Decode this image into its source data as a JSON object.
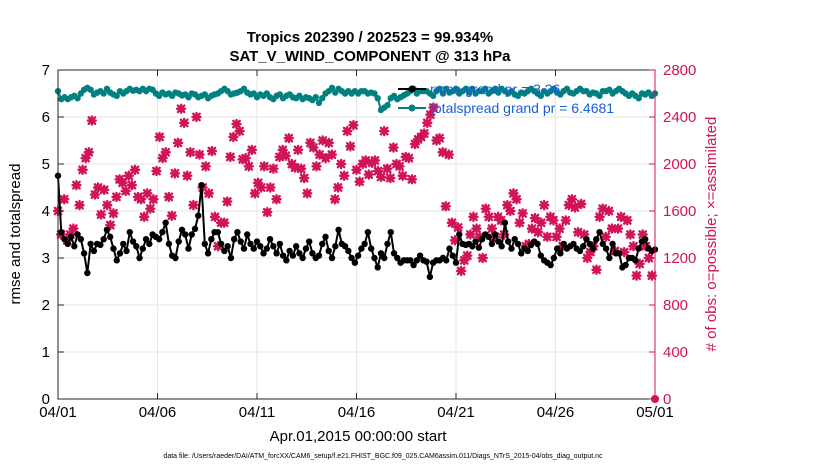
{
  "chart_data": {
    "type": "line",
    "title": "Tropics 202390 / 202523 = 99.934%",
    "subtitle": "SAT_V_WIND_COMPONENT @ 313 hPa",
    "xlabel": "Apr.01,2015 00:00:00 start",
    "ylabel": "rmse and totalspread",
    "ylabel_right": "# of obs: o=possible; ×=assimilated",
    "footer": "data file: /Users/raeder/DAI/ATM_forcXX/CAM6_setup/f.e21.FHIST_BGC.f09_025.CAM6assim.011/Diags_NTrS_2015-04/obs_diag_output.nc",
    "xlim": [
      0,
      30
    ],
    "ylim": [
      0,
      7
    ],
    "ylim_right": [
      0,
      2800
    ],
    "x_ticks": [
      0,
      5,
      10,
      15,
      20,
      25,
      30
    ],
    "x_tick_labels": [
      "04/01",
      "04/06",
      "04/11",
      "04/16",
      "04/21",
      "04/26",
      "05/01"
    ],
    "y_ticks": [
      0,
      1,
      2,
      3,
      4,
      5,
      6,
      7
    ],
    "y_tick_labels": [
      "0",
      "1",
      "2",
      "3",
      "4",
      "5",
      "6",
      "7"
    ],
    "y_right_ticks": [
      0,
      400,
      800,
      1200,
      1600,
      2000,
      2400,
      2800
    ],
    "y_right_tick_labels": [
      "0",
      "400",
      "800",
      "1200",
      "1600",
      "2000",
      "2400",
      "2800"
    ],
    "grid": true,
    "legend_position": "top-right",
    "colors": {
      "rmse": "#000000",
      "spread": "#008080",
      "obs": "#d1135a",
      "legend_text": "#1a5fd8"
    },
    "series": [
      {
        "name": "rmse grand pr = 3.26",
        "axis": "left",
        "style": "line-dot",
        "values": [
          4.75,
          3.55,
          3.4,
          3.3,
          3.45,
          3.25,
          3.5,
          3.4,
          3.1,
          2.68,
          3.3,
          3.15,
          3.3,
          3.28,
          3.4,
          3.6,
          3.45,
          3.2,
          2.95,
          3.1,
          3.3,
          3.15,
          3.55,
          3.35,
          3.25,
          3.0,
          3.2,
          3.4,
          3.3,
          3.5,
          3.45,
          3.4,
          3.55,
          3.75,
          3.3,
          3.05,
          3.0,
          3.35,
          3.6,
          3.5,
          3.2,
          3.5,
          3.62,
          3.9,
          4.55,
          3.3,
          3.1,
          3.4,
          3.55,
          3.55,
          3.3,
          3.15,
          3.25,
          3.0,
          3.4,
          3.55,
          3.35,
          3.2,
          3.5,
          3.3,
          3.2,
          3.35,
          3.25,
          3.1,
          3.2,
          3.4,
          3.25,
          3.1,
          3.3,
          3.05,
          2.95,
          3.15,
          3.05,
          3.25,
          3.1,
          3.0,
          3.2,
          3.35,
          3.1,
          3.0,
          3.05,
          3.3,
          3.45,
          3.15,
          3.0,
          3.25,
          3.6,
          3.3,
          3.25,
          3.15,
          3.0,
          2.9,
          3.05,
          3.2,
          3.3,
          3.55,
          3.2,
          3.0,
          2.8,
          3.1,
          3.0,
          3.3,
          3.55,
          3.1,
          3.0,
          2.9,
          2.95,
          2.95,
          2.95,
          2.85,
          2.95,
          3.05,
          2.95,
          2.92,
          2.6,
          2.9,
          2.95,
          2.95,
          3.0,
          2.95,
          3.2,
          3.05,
          2.9,
          3.5,
          3.3,
          3.28,
          3.3,
          3.25,
          3.35,
          3.22,
          3.4,
          3.5,
          3.45,
          3.3,
          3.5,
          3.35,
          3.25,
          3.75,
          3.35,
          3.2,
          3.4,
          3.3,
          3.1,
          3.2,
          3.15,
          3.28,
          3.35,
          3.3,
          3.05,
          2.95,
          2.9,
          2.85,
          3.0,
          3.2,
          3.1,
          3.3,
          3.2,
          3.25,
          3.3,
          3.2,
          3.15,
          3.25,
          3.4,
          3.3,
          3.2,
          3.4,
          3.55,
          3.3,
          3.2,
          3.0,
          3.3,
          3.1,
          3.1,
          2.8,
          2.85,
          3.0,
          3.0,
          2.95,
          3.2,
          3.35,
          3.4,
          3.2,
          3.15,
          3.18
        ]
      },
      {
        "name": "totalspread grand pr = 6.4681",
        "axis": "left",
        "style": "line-dot",
        "values": [
          6.55,
          6.38,
          6.42,
          6.38,
          6.42,
          6.45,
          6.4,
          6.5,
          6.58,
          6.62,
          6.58,
          6.48,
          6.52,
          6.55,
          6.5,
          6.6,
          6.52,
          6.48,
          6.45,
          6.55,
          6.5,
          6.55,
          6.6,
          6.56,
          6.58,
          6.55,
          6.6,
          6.55,
          6.6,
          6.58,
          6.5,
          6.45,
          6.52,
          6.48,
          6.5,
          6.45,
          6.52,
          6.5,
          6.46,
          6.48,
          6.42,
          6.5,
          6.48,
          6.42,
          6.45,
          6.48,
          6.4,
          6.45,
          6.48,
          6.5,
          6.55,
          6.6,
          6.55,
          6.48,
          6.5,
          6.52,
          6.55,
          6.6,
          6.52,
          6.48,
          6.5,
          6.42,
          6.48,
          6.45,
          6.5,
          6.42,
          6.38,
          6.45,
          6.48,
          6.4,
          6.45,
          6.48,
          6.42,
          6.4,
          6.45,
          6.38,
          6.42,
          6.4,
          6.36,
          6.42,
          6.3,
          6.4,
          6.5,
          6.55,
          6.62,
          6.52,
          6.6,
          6.55,
          6.5,
          6.55,
          6.5,
          6.55,
          6.5,
          6.55,
          6.55,
          6.5,
          6.52,
          6.5,
          6.4,
          6.15,
          6.2,
          6.25,
          6.4,
          6.45,
          6.38,
          6.42,
          6.46,
          6.5,
          6.55,
          6.6,
          6.5,
          6.55,
          6.55,
          6.55,
          6.5,
          6.45,
          6.55,
          6.6,
          6.5,
          6.6,
          6.52,
          6.55,
          6.6,
          6.5,
          6.55,
          6.6,
          6.52,
          6.6,
          6.5,
          6.55,
          6.55,
          6.6,
          6.5,
          6.55,
          6.6,
          6.52,
          6.6,
          6.55,
          6.5,
          6.55,
          6.48,
          6.45,
          6.52,
          6.5,
          6.55,
          6.6,
          6.55,
          6.5,
          6.45,
          6.55,
          6.5,
          6.55,
          6.6,
          6.52,
          6.48,
          6.55,
          6.6,
          6.52,
          6.5,
          6.55,
          6.6,
          6.55,
          6.55,
          6.48,
          6.52,
          6.5,
          6.45,
          6.55,
          6.55,
          6.58,
          6.5,
          6.55,
          6.6,
          6.55,
          6.5,
          6.45,
          6.5,
          6.45,
          6.4,
          6.5,
          6.48,
          6.52,
          6.45,
          6.5
        ]
      },
      {
        "name": "# of obs assimilated",
        "axis": "right",
        "style": "marker-x",
        "values": [
          1600,
          1400,
          1700,
          1350,
          1400,
          1450,
          1820,
          1650,
          1950,
          2050,
          2100,
          2370,
          1740,
          1800,
          1570,
          1780,
          1650,
          1480,
          1580,
          1720,
          1870,
          1840,
          1770,
          1900,
          1820,
          1950,
          1720,
          1700,
          1550,
          1750,
          1620,
          1700,
          1940,
          2230,
          2050,
          2100,
          1720,
          1560,
          1920,
          2180,
          2470,
          2350,
          1900,
          2100,
          1650,
          2400,
          2080,
          1800,
          1980,
          1750,
          2110,
          1550,
          1300,
          1500,
          1500,
          1680,
          2060,
          2230,
          2340,
          2280,
          2040,
          2050,
          1980,
          2120,
          1750,
          1840,
          1800,
          1980,
          1590,
          1800,
          1960,
          1700,
          2060,
          2120,
          2070,
          2220,
          2000,
          1970,
          2120,
          1960,
          1880,
          1750,
          2180,
          2140,
          1980,
          2080,
          2200,
          2050,
          2180,
          2080,
          1700,
          1800,
          2000,
          1900,
          2280,
          2150,
          2330,
          1950,
          1850,
          2000,
          2030,
          1910,
          2010,
          2030,
          1940,
          1890,
          2280,
          1960,
          1880,
          2140,
          2000,
          1980,
          1900,
          2060,
          2050,
          1870,
          2170,
          2210,
          2230,
          2260,
          2350,
          2420,
          2480,
          2200,
          2220,
          2100,
          1640,
          2080,
          1500,
          1350,
          1460,
          1090,
          1180,
          1220,
          1400,
          1550,
          1450,
          1380,
          1200,
          1620,
          1550,
          1450,
          1380,
          1550,
          1520,
          1400,
          1650,
          1600,
          1750,
          1700,
          1500,
          1580,
          1300,
          1320,
          1450,
          1540,
          1420,
          1500,
          1650,
          1380,
          1550,
          1520,
          1380,
          1450,
          1300,
          1520,
          1650,
          1700,
          1630,
          1420,
          1660,
          1400,
          1200,
          1250,
          1300,
          1100,
          1550,
          1620,
          1380,
          1600,
          1450,
          1260,
          1450,
          1550,
          1250,
          1520,
          1400,
          1300,
          1050,
          1150,
          1400,
          1300,
          1200,
          1050,
          0
        ]
      }
    ]
  }
}
